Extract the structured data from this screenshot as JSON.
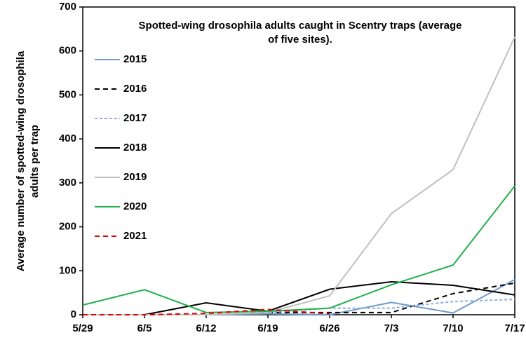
{
  "chart_data": {
    "type": "line",
    "title": [
      "Spotted-wing drosophila adults caught in Scentry traps (average",
      "of five sites)."
    ],
    "ylabel": [
      "Average number of spotted-wing drosophila",
      "adults per trap"
    ],
    "categories": [
      "5/29",
      "6/5",
      "6/12",
      "6/19",
      "6/26",
      "7/3",
      "7/10",
      "7/17"
    ],
    "ylim": [
      0,
      700
    ],
    "yticks": [
      0,
      100,
      200,
      300,
      400,
      500,
      600,
      700
    ],
    "legend": "upper-left",
    "series": [
      {
        "name": "2015",
        "color": "#6b9bcb",
        "dash": "solid",
        "values": [
          0,
          0,
          0,
          2,
          0,
          28,
          4,
          80
        ]
      },
      {
        "name": "2016",
        "color": "#000000",
        "dash": "dashed",
        "values": [
          0,
          0,
          0,
          5,
          5,
          5,
          48,
          72
        ]
      },
      {
        "name": "2017",
        "color": "#8aaee0",
        "dash": "dotted",
        "values": [
          0,
          0,
          0,
          5,
          15,
          15,
          30,
          35
        ]
      },
      {
        "name": "2018",
        "color": "#000000",
        "dash": "solid",
        "values": [
          0,
          0,
          27,
          8,
          58,
          75,
          67,
          45
        ]
      },
      {
        "name": "2019",
        "color": "#c0c0c0",
        "dash": "solid",
        "values": [
          0,
          0,
          0,
          5,
          43,
          230,
          330,
          632
        ]
      },
      {
        "name": "2020",
        "color": "#22b04a",
        "dash": "solid",
        "values": [
          22,
          57,
          5,
          8,
          15,
          68,
          113,
          293
        ]
      },
      {
        "name": "2021",
        "color": "#e00000",
        "dash": "dashed",
        "values": [
          0,
          0,
          3,
          12,
          2,
          null,
          null,
          null
        ]
      }
    ]
  }
}
